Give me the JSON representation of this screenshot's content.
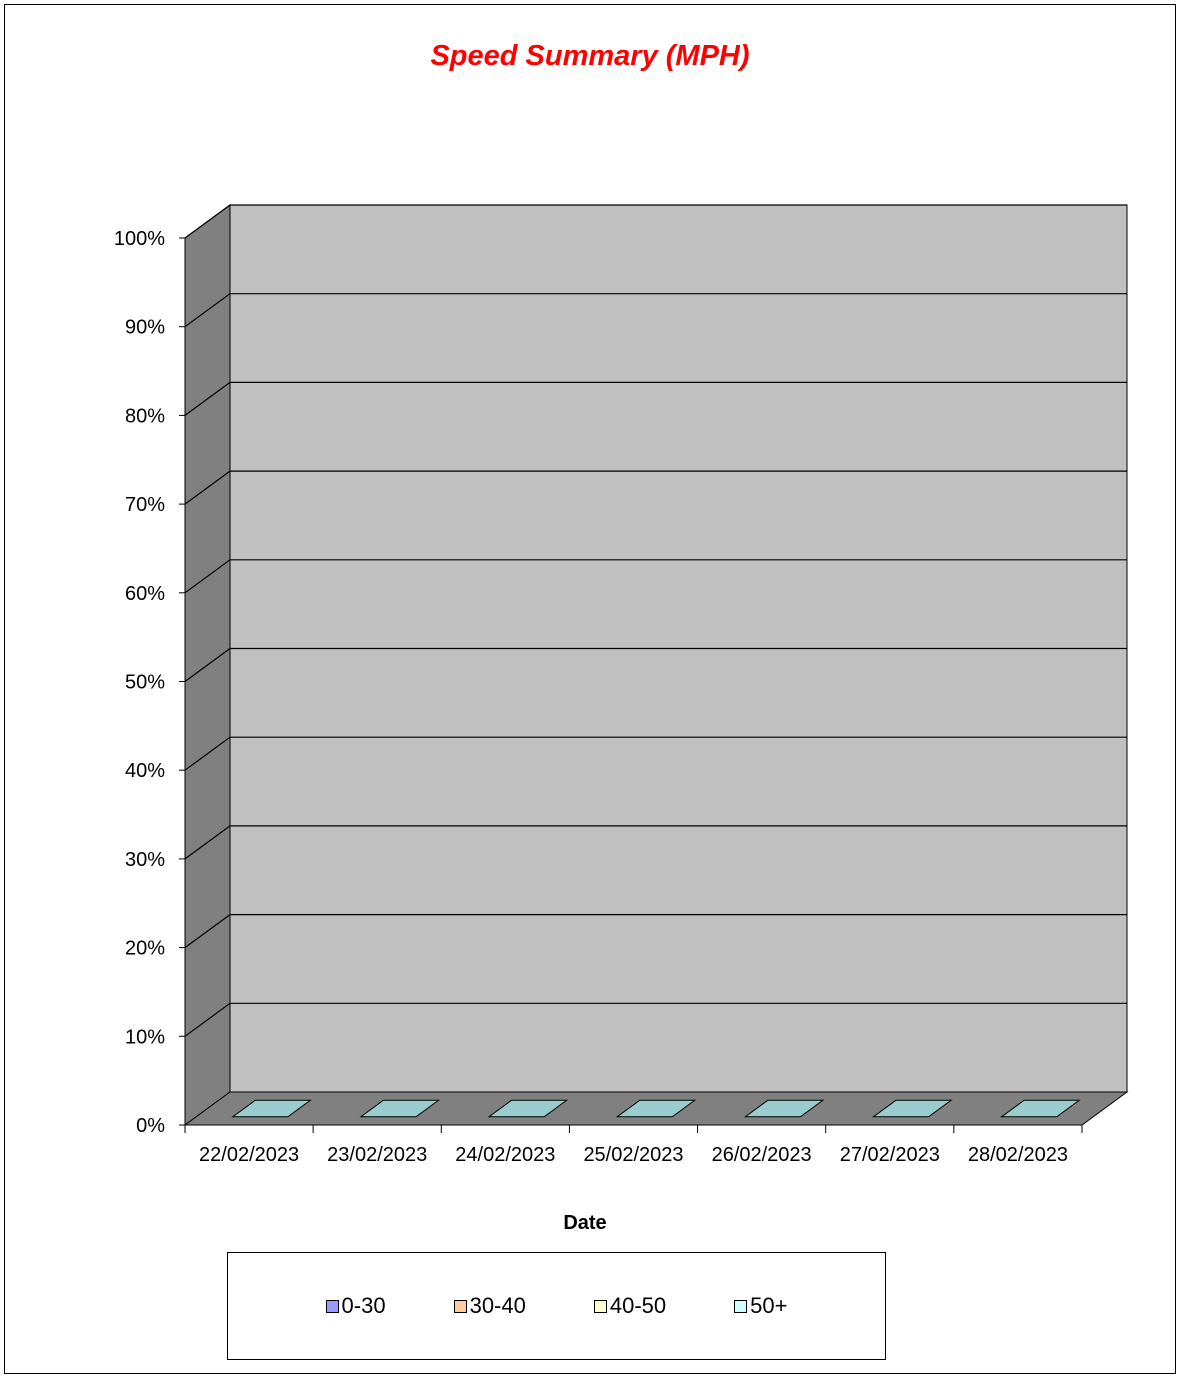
{
  "chart_data": {
    "type": "bar",
    "stacked": true,
    "three_d": true,
    "title": "Speed Summary (MPH)",
    "xlabel": "Date",
    "ylabel": "",
    "ylim": [
      0,
      100
    ],
    "y_ticks": [
      "0%",
      "10%",
      "20%",
      "30%",
      "40%",
      "50%",
      "60%",
      "70%",
      "80%",
      "90%",
      "100%"
    ],
    "categories": [
      "22/02/2023",
      "23/02/2023",
      "24/02/2023",
      "25/02/2023",
      "26/02/2023",
      "27/02/2023",
      "28/02/2023"
    ],
    "series": [
      {
        "name": "0-30",
        "color": "#9999ff",
        "values": [
          0,
          0,
          0,
          0,
          0,
          0,
          0
        ]
      },
      {
        "name": "30-40",
        "color": "#ffcc99",
        "values": [
          0,
          0,
          0,
          0,
          0,
          0,
          0
        ]
      },
      {
        "name": "40-50",
        "color": "#ffffcc",
        "values": [
          0,
          0,
          0,
          0,
          0,
          0,
          0
        ]
      },
      {
        "name": "50+",
        "color": "#ccffff",
        "values": [
          0,
          0,
          0,
          0,
          0,
          0,
          0
        ]
      }
    ],
    "grid": true,
    "legend_position": "bottom",
    "colors": {
      "title": "#ff0000",
      "back_wall": "#c0c0c0",
      "side_wall": "#808080",
      "floor": "#808080",
      "empty_bar_top": "#99cccc"
    }
  }
}
